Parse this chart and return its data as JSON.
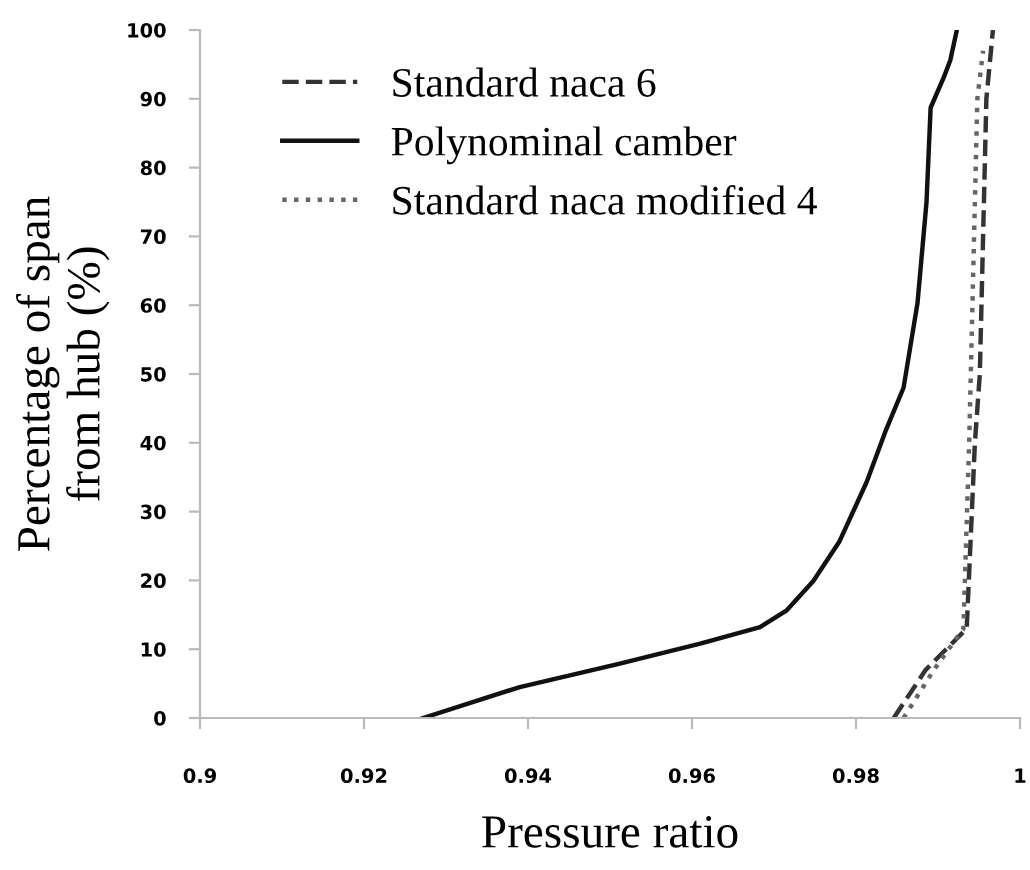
{
  "chart_data": {
    "type": "line",
    "xlabel": "Pressure ratio",
    "ylabel": "Percentage of span\nfrom hub (%)",
    "xlim": [
      0.9,
      1
    ],
    "ylim": [
      0,
      100
    ],
    "xticks": [
      0.9,
      0.92,
      0.94,
      0.96,
      0.98,
      1
    ],
    "yticks": [
      0,
      10,
      20,
      30,
      40,
      50,
      60,
      70,
      80,
      90,
      100
    ],
    "grid": false,
    "legend": "top left",
    "marker": "none",
    "series": [
      {
        "name": "Standard naca 6",
        "color": "#333333",
        "line_style": "dashed",
        "x": [
          0.9846,
          0.9885,
          0.9935,
          0.9945,
          0.9951,
          0.9959,
          0.9967
        ],
        "values": [
          0,
          7,
          13,
          40,
          50,
          90,
          100
        ]
      },
      {
        "name": "Polynominal camber",
        "color": "#111111",
        "line_style": "solid",
        "x": [
          0.9272,
          0.939,
          0.9512,
          0.961,
          0.9683,
          0.9715,
          0.9748,
          0.978,
          0.9813,
          0.9837,
          0.9858,
          0.9875,
          0.9886,
          0.9891,
          0.9907,
          0.9915,
          0.9923
        ],
        "values": [
          0,
          4.5,
          7.9,
          10.8,
          13.2,
          15.6,
          19.9,
          25.7,
          34.3,
          42,
          48,
          60.3,
          75,
          88.7,
          93.1,
          95.6,
          100
        ]
      },
      {
        "name": "Standard naca modified 4",
        "color": "#666666",
        "line_style": "dotted",
        "x": [
          0.9858,
          0.9895,
          0.9931,
          0.9938,
          0.9942,
          0.9948,
          0.9955
        ],
        "values": [
          0,
          7,
          13,
          40,
          60,
          90,
          97
        ]
      }
    ]
  }
}
